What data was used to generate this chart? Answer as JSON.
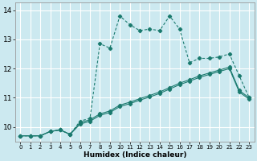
{
  "title": "",
  "xlabel": "Humidex (Indice chaleur)",
  "ylabel": "",
  "bg_color": "#cce9f0",
  "grid_color": "#ffffff",
  "line_color": "#1a7a6e",
  "xlim": [
    -0.5,
    23.5
  ],
  "ylim": [
    9.5,
    14.25
  ],
  "xticks": [
    0,
    1,
    2,
    3,
    4,
    5,
    6,
    7,
    8,
    9,
    10,
    11,
    12,
    13,
    14,
    15,
    16,
    17,
    18,
    19,
    20,
    21,
    22,
    23
  ],
  "yticks": [
    10,
    11,
    12,
    13,
    14
  ],
  "line1_x": [
    0,
    1,
    2,
    3,
    4,
    5,
    6,
    7,
    8,
    9,
    10,
    11,
    12,
    13,
    14,
    15,
    16,
    17,
    18,
    19,
    20,
    21,
    22,
    23
  ],
  "line1_y": [
    9.7,
    9.7,
    9.7,
    9.85,
    9.9,
    9.75,
    10.2,
    10.3,
    12.85,
    12.7,
    13.8,
    13.5,
    13.3,
    13.35,
    13.3,
    13.8,
    13.35,
    12.2,
    12.35,
    12.35,
    12.4,
    12.5,
    11.75,
    11.0
  ],
  "line2_x": [
    0,
    1,
    2,
    3,
    4,
    5,
    6,
    7,
    8,
    9,
    10,
    11,
    12,
    13,
    14,
    15,
    16,
    17,
    18,
    19,
    20,
    21,
    22,
    23
  ],
  "line2_y": [
    9.7,
    9.7,
    9.7,
    9.85,
    9.9,
    9.75,
    10.15,
    10.25,
    10.45,
    10.55,
    10.75,
    10.85,
    10.97,
    11.08,
    11.2,
    11.35,
    11.5,
    11.62,
    11.75,
    11.85,
    11.95,
    12.05,
    11.25,
    11.0
  ],
  "line3_x": [
    0,
    1,
    2,
    3,
    4,
    5,
    6,
    7,
    8,
    9,
    10,
    11,
    12,
    13,
    14,
    15,
    16,
    17,
    18,
    19,
    20,
    21,
    22,
    23
  ],
  "line3_y": [
    9.7,
    9.7,
    9.7,
    9.85,
    9.9,
    9.75,
    10.1,
    10.2,
    10.4,
    10.5,
    10.7,
    10.8,
    10.92,
    11.03,
    11.15,
    11.3,
    11.45,
    11.57,
    11.7,
    11.8,
    11.9,
    12.0,
    11.2,
    10.95
  ]
}
